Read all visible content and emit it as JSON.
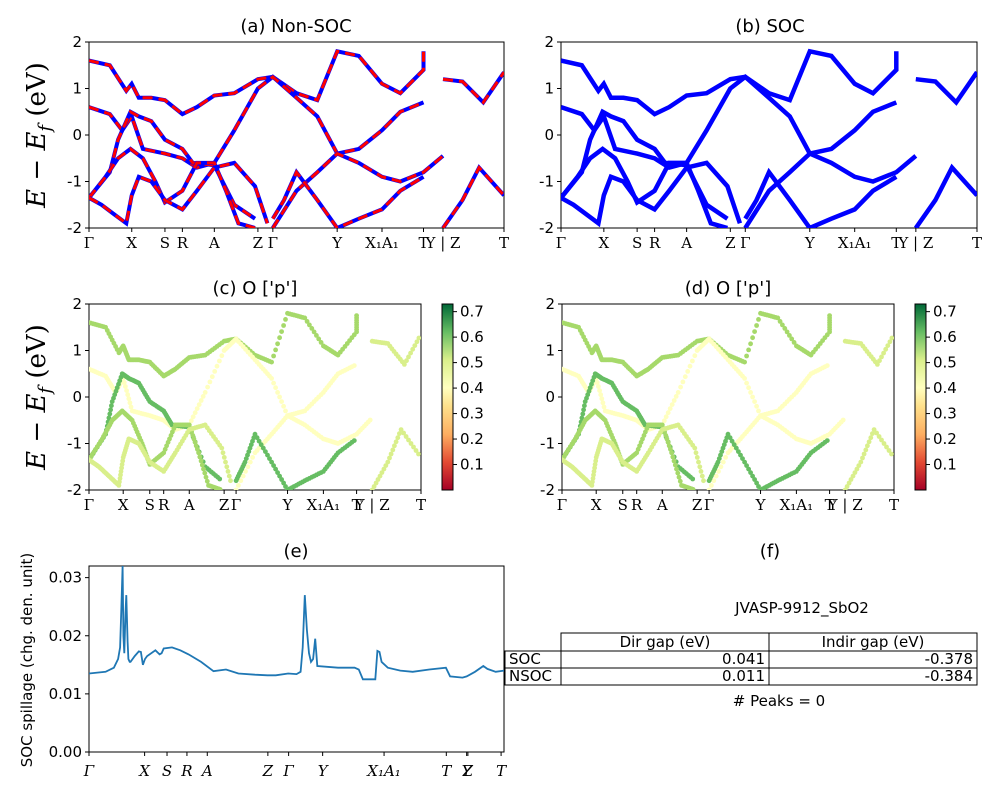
{
  "kpath": {
    "labels": [
      "Γ",
      "X",
      "S",
      "R",
      "A",
      "Z",
      "Γ",
      "Y",
      "X₁A₁",
      "T",
      "Y | Z",
      "T"
    ],
    "positions": [
      0,
      0.103,
      0.183,
      0.225,
      0.302,
      0.407,
      0.443,
      0.598,
      0.706,
      0.806,
      0.853,
      1.0
    ]
  },
  "spillage_kpath": {
    "labels": [
      "Γ",
      "X",
      "S",
      "R",
      "A",
      "Z",
      "Γ",
      "Y",
      "X₁A₁",
      "T",
      "Y",
      "Z",
      "T"
    ],
    "positions": [
      0,
      0.134,
      0.188,
      0.236,
      0.285,
      0.431,
      0.481,
      0.563,
      0.711,
      0.861,
      0.91,
      0.913,
      0.993
    ]
  },
  "ylabel_main": "E − E",
  "ylabel_sub": "f",
  "ylabel_unit": " (eV)",
  "panels": {
    "a": {
      "title": "(a) Non-SOC"
    },
    "b": {
      "title": "(b) SOC"
    },
    "c": {
      "title": "(c)  O ['p']"
    },
    "d": {
      "title": "(d) O ['p']"
    },
    "e": {
      "title": "(e)",
      "ylabel": "SOC spillage (chg. den. unit)"
    },
    "f": {
      "title": "(f)"
    }
  },
  "chart_data": [
    {
      "type": "line",
      "id": "band-non-soc",
      "title": "(a) Non-SOC",
      "ylim": [
        -2,
        2
      ],
      "yticks": [
        -2,
        -1,
        0,
        1,
        2
      ],
      "colors": {
        "line": "#0000ff",
        "dash": "#ff0000"
      },
      "series": [
        {
          "x": [
            0,
            0.05,
            0.09,
            0.103,
            0.12,
            0.15,
            0.183,
            0.225,
            0.26,
            0.302,
            0.35,
            0.407,
            0.443,
            0.5,
            0.55,
            0.598,
            0.65,
            0.706,
            0.75,
            0.806,
            0.806
          ],
          "y": [
            1.6,
            1.5,
            0.95,
            1.1,
            0.8,
            0.8,
            0.75,
            0.45,
            0.6,
            0.85,
            0.9,
            1.2,
            1.25,
            0.9,
            0.75,
            1.8,
            1.7,
            1.1,
            0.9,
            1.4,
            1.8
          ]
        },
        {
          "x": [
            0.853,
            0.9,
            0.95,
            1.0
          ],
          "y": [
            1.2,
            1.15,
            0.7,
            1.35
          ]
        },
        {
          "x": [
            0,
            0.05,
            0.08,
            0.103,
            0.13,
            0.183,
            0.225,
            0.26,
            0.302,
            0.35,
            0.407,
            0.443,
            0.5,
            0.55,
            0.598,
            0.65,
            0.706,
            0.75,
            0.806
          ],
          "y": [
            0.6,
            0.45,
            0.1,
            0.4,
            -0.3,
            -0.4,
            -0.5,
            -0.7,
            -0.6,
            0.1,
            1.0,
            1.25,
            0.8,
            0.4,
            -0.4,
            -0.3,
            0.1,
            0.5,
            0.7
          ]
        },
        {
          "x": [
            0,
            0.05,
            0.07,
            0.1,
            0.12,
            0.15,
            0.183,
            0.225,
            0.25,
            0.302,
            0.35,
            0.4
          ],
          "y": [
            -1.35,
            -0.8,
            -0.1,
            0.5,
            0.4,
            0.3,
            -0.1,
            -0.3,
            -0.6,
            -0.65,
            -1.5,
            -1.8
          ]
        },
        {
          "x": [
            0,
            0.04,
            0.07,
            0.1,
            0.13,
            0.16,
            0.183,
            0.225,
            0.26,
            0.302,
            0.33,
            0.36,
            0.4
          ],
          "y": [
            -1.35,
            -0.9,
            -0.5,
            -0.3,
            -0.5,
            -1.0,
            -1.45,
            -1.2,
            -0.6,
            -0.6,
            -1.2,
            -1.9,
            -2.0
          ]
        },
        {
          "x": [
            0,
            0.03,
            0.06,
            0.09,
            0.103,
            0.12,
            0.15,
            0.183,
            0.225,
            0.26,
            0.302,
            0.35,
            0.4,
            0.43
          ],
          "y": [
            -1.35,
            -1.5,
            -1.7,
            -1.9,
            -1.3,
            -0.9,
            -1.0,
            -1.4,
            -1.6,
            -1.2,
            -0.7,
            -0.6,
            -1.1,
            -1.9
          ]
        },
        {
          "x": [
            0.443,
            0.5,
            0.55,
            0.598,
            0.65,
            0.706,
            0.75,
            0.806,
            0.853
          ],
          "y": [
            -2.0,
            -1.2,
            -0.8,
            -0.4,
            -0.6,
            -0.9,
            -1.0,
            -0.8,
            -0.45
          ]
        },
        {
          "x": [
            0.443,
            0.47,
            0.5,
            0.55,
            0.598,
            0.65,
            0.706,
            0.75,
            0.806
          ],
          "y": [
            -1.8,
            -1.4,
            -0.8,
            -1.4,
            -2.0,
            -1.8,
            -1.6,
            -1.2,
            -0.9
          ]
        },
        {
          "x": [
            0.853,
            0.9,
            0.94,
            1.0
          ],
          "y": [
            -2.0,
            -1.4,
            -0.7,
            -1.3
          ]
        }
      ]
    },
    {
      "type": "line",
      "id": "band-soc",
      "title": "(b) SOC",
      "ylim": [
        -2,
        2
      ],
      "yticks": [
        -2,
        -1,
        0,
        1,
        2
      ],
      "colors": {
        "line": "#0000ff"
      }
    },
    {
      "type": "scatter",
      "id": "proj-c",
      "title": "(c)  O ['p']",
      "ylim": [
        -2,
        2
      ],
      "yticks": [
        -2,
        -1,
        0,
        1,
        2
      ],
      "colorbar": {
        "ticks": [
          0.1,
          0.2,
          0.3,
          0.4,
          0.5,
          0.6,
          0.7
        ],
        "min": 0.0,
        "max": 0.73
      },
      "colors": {
        "c1": "#a6d96a",
        "c2": "#d9ef8b",
        "c3": "#ffffbf",
        "c4": "#66bd63"
      }
    },
    {
      "type": "scatter",
      "id": "proj-d",
      "title": "(d) O ['p']",
      "ylim": [
        -2,
        2
      ],
      "yticks": [
        -2,
        -1,
        0,
        1,
        2
      ],
      "colorbar": {
        "ticks": [
          0.1,
          0.2,
          0.3,
          0.4,
          0.5,
          0.6,
          0.7
        ],
        "min": 0.0,
        "max": 0.73
      }
    },
    {
      "type": "line",
      "id": "spillage",
      "title": "(e)",
      "ylabel": "SOC spillage (chg. den. unit)",
      "ylim": [
        0,
        0.032
      ],
      "yticks": [
        0.0,
        0.01,
        0.02,
        0.03
      ],
      "ytick_labels": [
        "0.00",
        "0.01",
        "0.02",
        "0.03"
      ],
      "colors": {
        "line": "#1f77b4"
      },
      "x": [
        0,
        0.04,
        0.06,
        0.07,
        0.075,
        0.078,
        0.081,
        0.083,
        0.085,
        0.088,
        0.09,
        0.093,
        0.095,
        0.098,
        0.1,
        0.11,
        0.12,
        0.125,
        0.13,
        0.135,
        0.14,
        0.16,
        0.17,
        0.175,
        0.18,
        0.2,
        0.22,
        0.24,
        0.27,
        0.3,
        0.33,
        0.36,
        0.4,
        0.43,
        0.45,
        0.48,
        0.5,
        0.51,
        0.515,
        0.52,
        0.525,
        0.53,
        0.535,
        0.54,
        0.545,
        0.55,
        0.6,
        0.64,
        0.65,
        0.66,
        0.68,
        0.69,
        0.695,
        0.7,
        0.705,
        0.72,
        0.75,
        0.78,
        0.82,
        0.86,
        0.87,
        0.9,
        0.91,
        0.93,
        0.95,
        0.96,
        0.98,
        1.0
      ],
      "y": [
        0.0135,
        0.0138,
        0.0145,
        0.016,
        0.018,
        0.025,
        0.032,
        0.02,
        0.017,
        0.024,
        0.027,
        0.019,
        0.016,
        0.0155,
        0.0155,
        0.0165,
        0.0173,
        0.0172,
        0.015,
        0.016,
        0.0165,
        0.0175,
        0.0168,
        0.017,
        0.0178,
        0.018,
        0.0175,
        0.0168,
        0.0155,
        0.0139,
        0.0142,
        0.0135,
        0.0133,
        0.0132,
        0.0132,
        0.0135,
        0.0134,
        0.0138,
        0.018,
        0.027,
        0.021,
        0.017,
        0.0155,
        0.016,
        0.0195,
        0.0148,
        0.0145,
        0.0145,
        0.0142,
        0.0125,
        0.0125,
        0.0125,
        0.0174,
        0.0172,
        0.0155,
        0.0145,
        0.014,
        0.0138,
        0.0142,
        0.0145,
        0.013,
        0.0128,
        0.013,
        0.0138,
        0.0148,
        0.0143,
        0.0138,
        0.014
      ]
    }
  ],
  "table": {
    "material": "JVASP-9912_SbO2",
    "header": [
      "",
      "Dir gap (eV)",
      "Indir gap (eV)"
    ],
    "rows": [
      {
        "label": "SOC",
        "dir": "0.041",
        "indir": "-0.378"
      },
      {
        "label": "NSOC",
        "dir": "0.011",
        "indir": "-0.384"
      }
    ],
    "peaks": "# Peaks = 0"
  }
}
